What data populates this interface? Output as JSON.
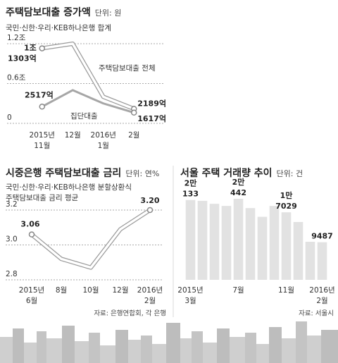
{
  "chart_data": [
    {
      "type": "line",
      "title": "주택담보대출 증가액",
      "unit": "단위: 원",
      "subtitle": "국민·신한·우리·KEB하나은행 합계",
      "categories": [
        "2015년\n11월",
        "12월",
        "2016년\n1월",
        "2월"
      ],
      "series": [
        {
          "name": "주택담보대출 전체",
          "color": "#ffffff",
          "values": [
            1.1303,
            1.2,
            0.4,
            0.2189
          ],
          "value_labels": [
            "1조\n1303억",
            null,
            null,
            "2189억"
          ]
        },
        {
          "name": "집단대출",
          "color": "#a6a6a6",
          "values": [
            0.2517,
            0.5,
            0.3,
            0.1617
          ],
          "value_labels": [
            "2517억",
            null,
            null,
            "1617억"
          ]
        }
      ],
      "ylim": [
        0,
        1.2
      ],
      "yticks": [
        0,
        {
          "value": 0.6,
          "label": "0.6조"
        },
        {
          "value": 1.2,
          "label": "1.2조"
        }
      ],
      "grid": true
    },
    {
      "type": "line",
      "title": "시중은행 주택담보대출 금리",
      "unit": "단위: 연%",
      "subtitle": "국민·신한·우리·KEB하나은행 분할상환식\n주택담보대출 금리 평균",
      "categories": [
        "2015년\n6월",
        "8월",
        "10월",
        "12월",
        "2016년\n2월"
      ],
      "values": [
        3.06,
        2.92,
        2.87,
        3.09,
        3.2
      ],
      "value_labels": [
        "3.06",
        null,
        null,
        null,
        "3.20"
      ],
      "color": "#ffffff",
      "ylim": [
        2.8,
        3.2
      ],
      "yticks": [
        2.8,
        {
          "value": 3.0,
          "label": "3.0"
        },
        3.2
      ],
      "grid": true,
      "source": "자료: 은행연합회, 각 은행"
    },
    {
      "type": "bar",
      "title": "서울 주택 거래량 추이",
      "unit": "단위: 건",
      "categories": [
        "2015년\n3월",
        null,
        null,
        null,
        "7월",
        null,
        null,
        null,
        "11월",
        null,
        null,
        "2016년\n2월"
      ],
      "values": [
        20133,
        19920,
        19170,
        18640,
        20442,
        18100,
        15900,
        18640,
        17029,
        14580,
        9600,
        9487
      ],
      "value_labels": [
        "2만\n133",
        null,
        null,
        null,
        "2만\n442",
        null,
        null,
        null,
        "1만\n7029",
        null,
        null,
        "9487"
      ],
      "color": "#e2e2e2",
      "source": "자료: 서울시"
    }
  ]
}
